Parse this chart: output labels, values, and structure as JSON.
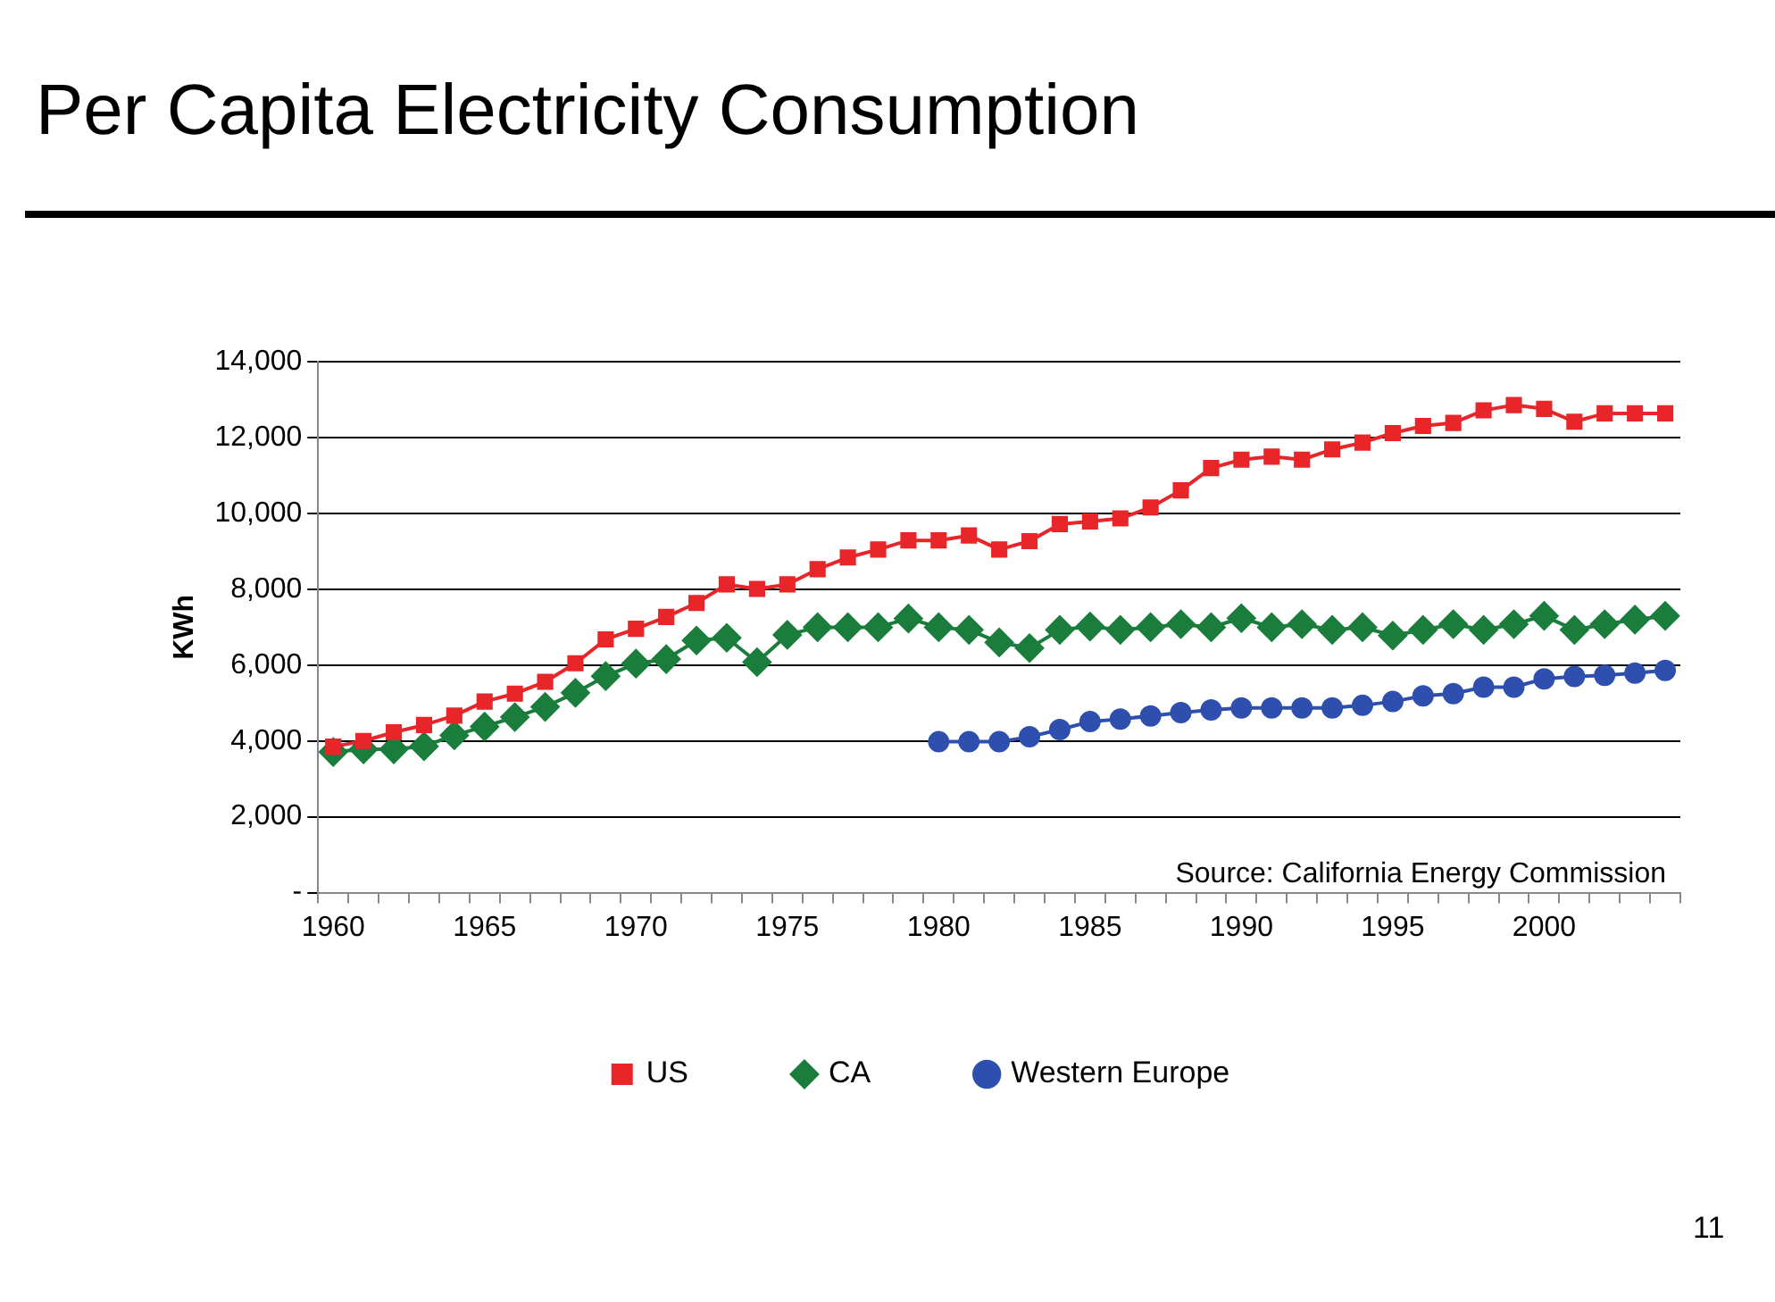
{
  "chart_data": {
    "type": "line",
    "title": "Per Capita Electricity Consumption",
    "ylabel": "KWh",
    "categories": [
      "1960",
      null,
      null,
      null,
      null,
      "1965",
      null,
      null,
      null,
      null,
      "1970",
      null,
      null,
      null,
      null,
      "1975",
      null,
      null,
      null,
      null,
      "1980",
      null,
      null,
      null,
      null,
      "1985",
      null,
      null,
      null,
      null,
      "1990",
      null,
      null,
      null,
      null,
      "1995",
      null,
      null,
      null,
      null,
      "2000",
      null,
      null,
      null,
      null
    ],
    "series": [
      {
        "name": "US",
        "color": "#e8262a",
        "marker": "square",
        "values": [
          3850,
          4000,
          4230,
          4420,
          4670,
          5040,
          5250,
          5560,
          6050,
          6680,
          6960,
          7270,
          7640,
          8130,
          8010,
          8130,
          8530,
          8840,
          9050,
          9290,
          9290,
          9420,
          9050,
          9270,
          9720,
          9790,
          9870,
          10160,
          10610,
          11200,
          11420,
          11500,
          11420,
          11690,
          11870,
          12120,
          12310,
          12390,
          12720,
          12860,
          12760,
          12420,
          12640,
          12640,
          12640
        ]
      },
      {
        "name": "CA",
        "color": "#1a7d3c",
        "marker": "diamond",
        "values": [
          3710,
          3780,
          3780,
          3860,
          4150,
          4380,
          4630,
          4900,
          5270,
          5710,
          6040,
          6160,
          6650,
          6720,
          6080,
          6800,
          7000,
          7000,
          7000,
          7230,
          7000,
          6930,
          6600,
          6450,
          6930,
          7020,
          6930,
          7000,
          7080,
          7000,
          7240,
          7000,
          7080,
          6930,
          7000,
          6780,
          6930,
          7080,
          6930,
          7080,
          7300,
          6930,
          7080,
          7200,
          7300
        ]
      },
      {
        "name": "Western Europe",
        "color": "#2e4fad",
        "marker": "circle",
        "values": [
          null,
          null,
          null,
          null,
          null,
          null,
          null,
          null,
          null,
          null,
          null,
          null,
          null,
          null,
          null,
          null,
          null,
          null,
          null,
          null,
          3980,
          3980,
          3980,
          4110,
          4300,
          4510,
          4580,
          4660,
          4750,
          4820,
          4870,
          4870,
          4870,
          4870,
          4940,
          5040,
          5190,
          5250,
          5420,
          5420,
          5640,
          5700,
          5730,
          5790,
          5860
        ]
      }
    ],
    "ylim": [
      0,
      14000
    ],
    "yticks": [
      {
        "value": 0,
        "label": "-"
      },
      {
        "value": 2000,
        "label": "2,000"
      },
      {
        "value": 4000,
        "label": "4,000"
      },
      {
        "value": 6000,
        "label": "6,000"
      },
      {
        "value": 8000,
        "label": "8,000"
      },
      {
        "value": 10000,
        "label": "10,000"
      },
      {
        "value": 12000,
        "label": "12,000"
      },
      {
        "value": 14000,
        "label": "14,000"
      }
    ],
    "grid": "y",
    "legend": "bottom",
    "line_style": "solid",
    "annotations": [
      "Source: California Energy Commission",
      "11"
    ]
  }
}
